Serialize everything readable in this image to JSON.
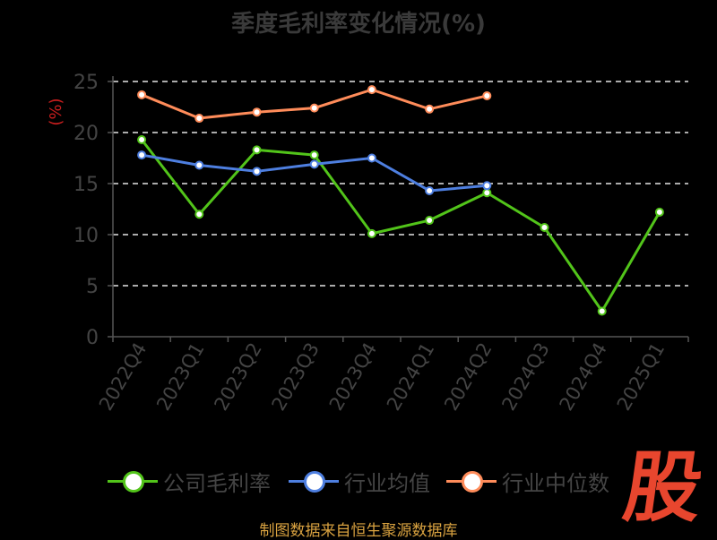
{
  "chart_data": {
    "type": "line",
    "title": "季度毛利率变化情况(%)",
    "ylabel": "(%)",
    "xlabel": "",
    "ylim": [
      0,
      25
    ],
    "yticks": [
      0,
      5,
      10,
      15,
      20,
      25
    ],
    "grid": true,
    "legend_position": "bottom",
    "categories": [
      "2022Q4",
      "2023Q1",
      "2023Q2",
      "2023Q3",
      "2023Q4",
      "2024Q1",
      "2024Q2",
      "2024Q3",
      "2024Q4",
      "2025Q1"
    ],
    "series": [
      {
        "name": "公司毛利率",
        "color": "#52c41a",
        "values": [
          19.3,
          12.0,
          18.3,
          17.8,
          10.1,
          11.4,
          14.1,
          10.7,
          2.5,
          12.2
        ]
      },
      {
        "name": "行业均值",
        "color": "#4e7fe0",
        "values": [
          17.8,
          16.8,
          16.2,
          16.9,
          17.5,
          14.3,
          14.8,
          null,
          null,
          null
        ]
      },
      {
        "name": "行业中位数",
        "color": "#ff8c5a",
        "values": [
          23.7,
          21.4,
          22.0,
          22.4,
          24.2,
          22.3,
          23.6,
          null,
          null,
          null
        ]
      }
    ]
  },
  "source_text": "制图数据来自恒生聚源数据库",
  "logo_text": "股"
}
